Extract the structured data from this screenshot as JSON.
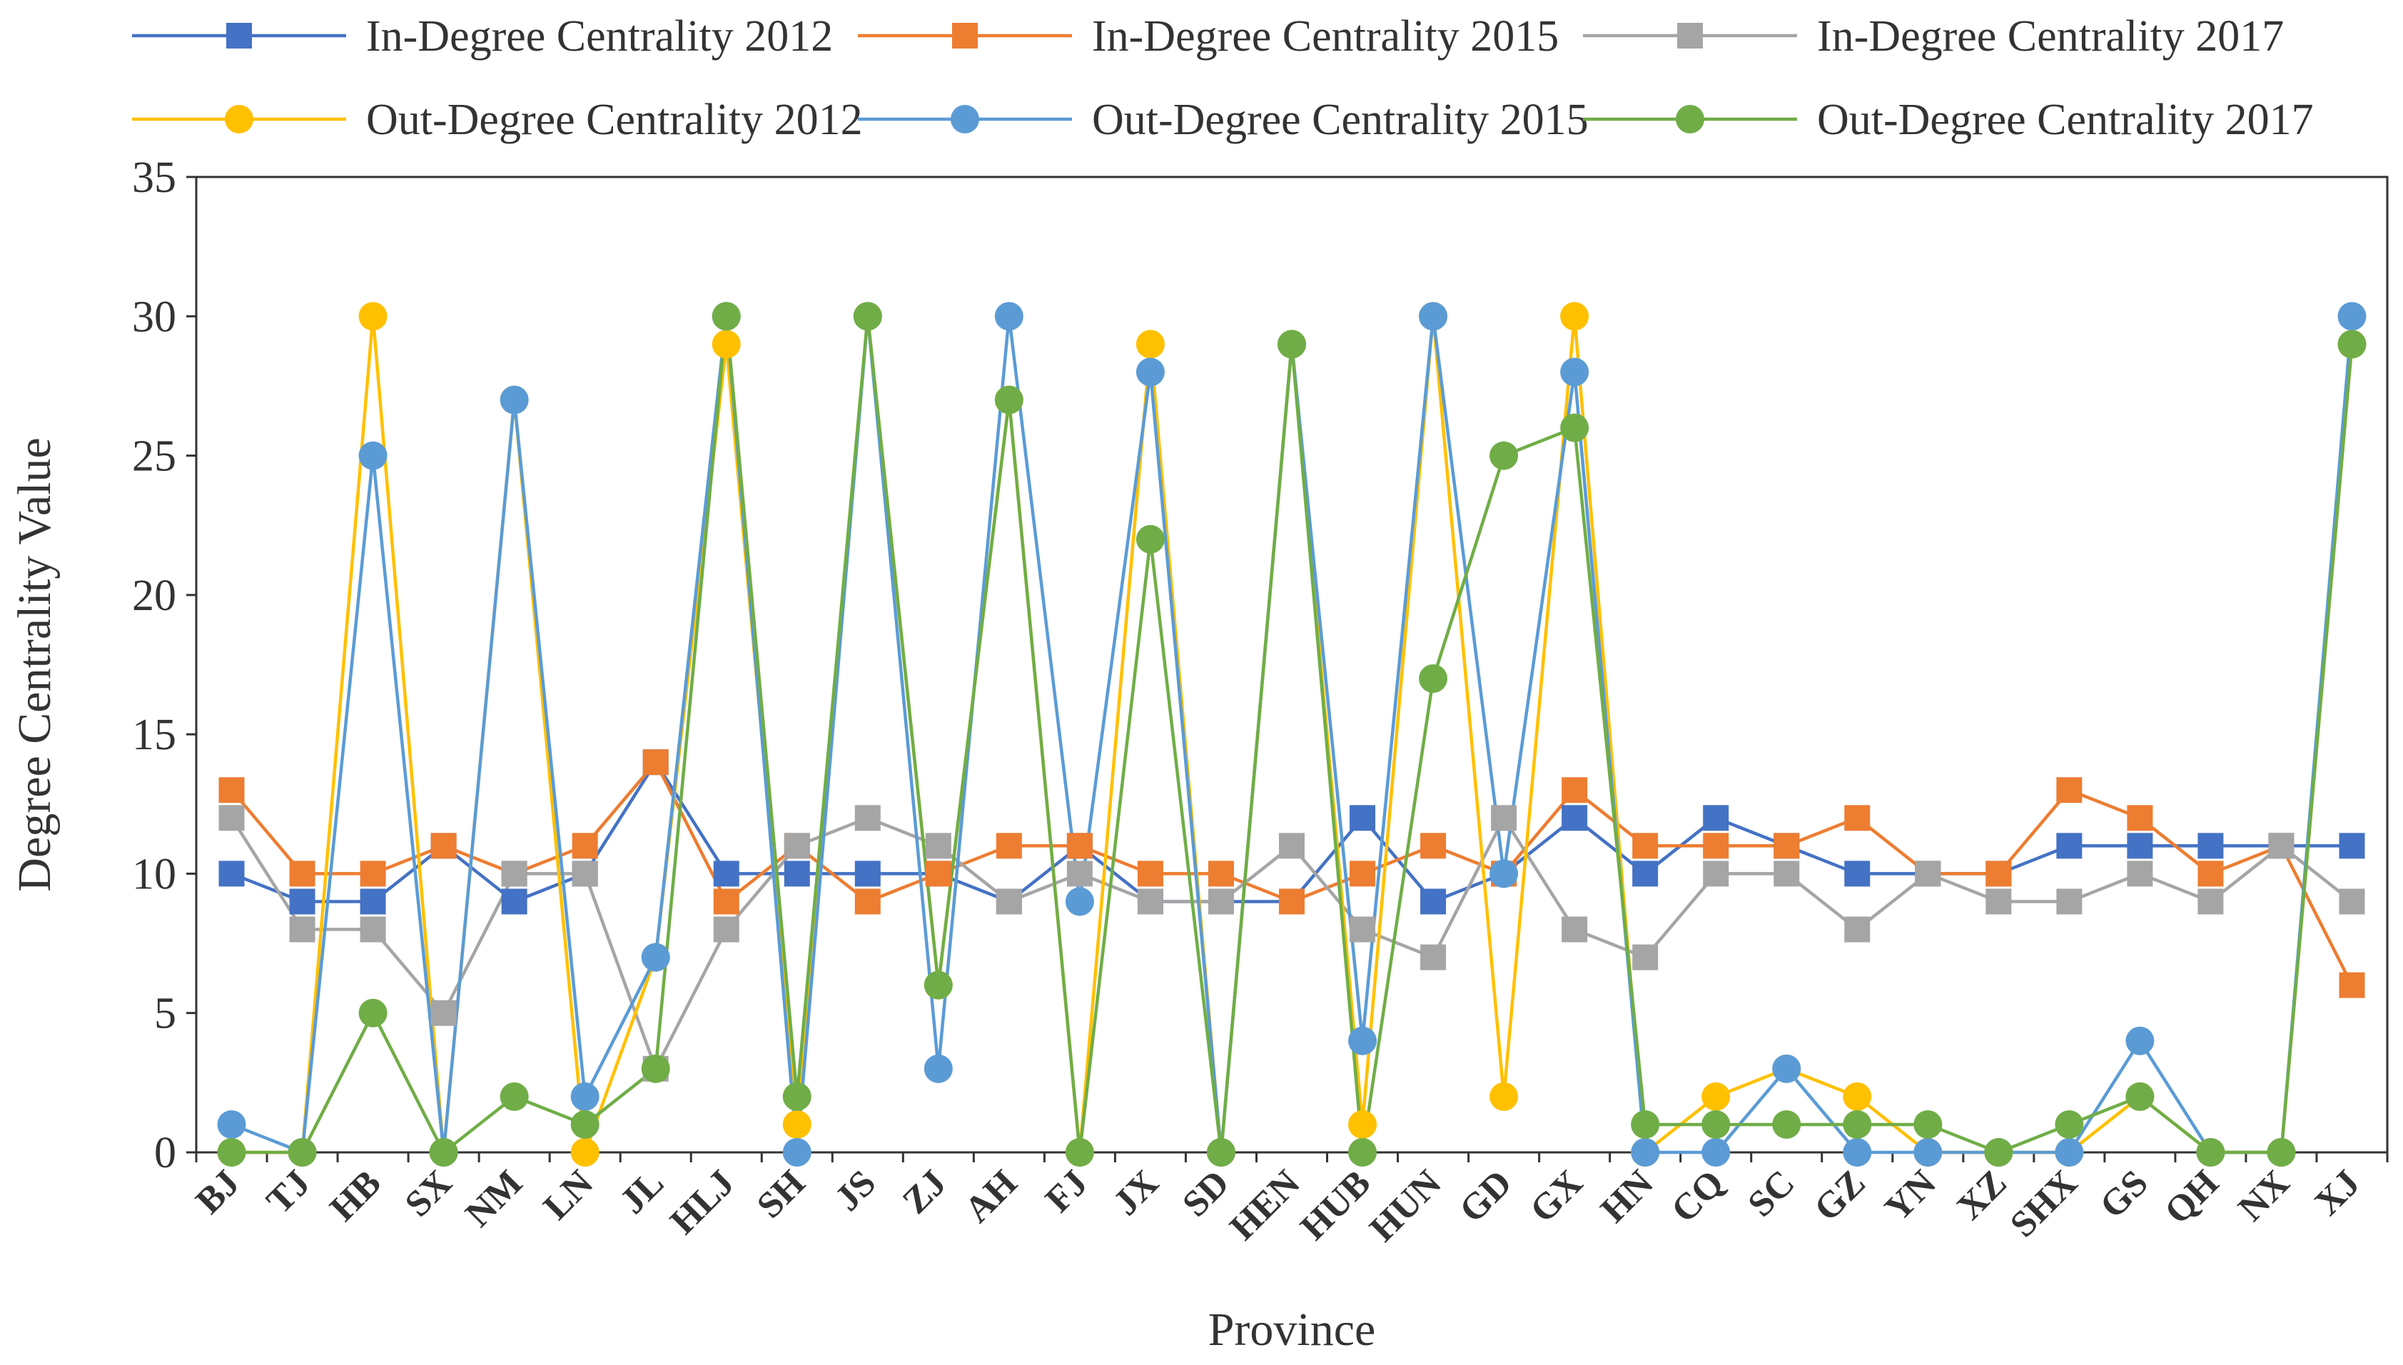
{
  "chart_data": {
    "type": "line",
    "title": "",
    "xlabel": "Province",
    "ylabel": "Degree Centrality Value",
    "ylim": [
      0,
      35
    ],
    "yticks": [
      0,
      5,
      10,
      15,
      20,
      25,
      30,
      35
    ],
    "grid": false,
    "legend_position": "top",
    "categories": [
      "BJ",
      "TJ",
      "HB",
      "SX",
      "NM",
      "LN",
      "JL",
      "HLJ",
      "SH",
      "JS",
      "ZJ",
      "AH",
      "FJ",
      "JX",
      "SD",
      "HEN",
      "HUB",
      "HUN",
      "GD",
      "GX",
      "HN",
      "CQ",
      "SC",
      "GZ",
      "YN",
      "XZ",
      "SHX",
      "GS",
      "QH",
      "NX",
      "XJ"
    ],
    "series": [
      {
        "name": "In-Degree Centrality 2012",
        "marker": "square",
        "color": "#4472C4",
        "values": [
          10,
          9,
          9,
          11,
          9,
          10,
          14,
          10,
          10,
          10,
          10,
          9,
          11,
          9,
          9,
          9,
          12,
          9,
          10,
          12,
          10,
          12,
          11,
          10,
          10,
          10,
          11,
          11,
          11,
          11,
          11
        ]
      },
      {
        "name": "In-Degree Centrality 2015",
        "marker": "square",
        "color": "#ED7D31",
        "values": [
          13,
          10,
          10,
          11,
          10,
          11,
          14,
          9,
          11,
          9,
          10,
          11,
          11,
          10,
          10,
          9,
          10,
          11,
          10,
          13,
          11,
          11,
          11,
          12,
          10,
          10,
          13,
          12,
          10,
          11,
          6
        ]
      },
      {
        "name": "In-Degree Centrality 2017",
        "marker": "square",
        "color": "#A5A5A5",
        "values": [
          12,
          8,
          8,
          5,
          10,
          10,
          3,
          8,
          11,
          12,
          11,
          9,
          10,
          9,
          9,
          11,
          8,
          7,
          12,
          8,
          7,
          10,
          10,
          8,
          10,
          9,
          9,
          10,
          9,
          11,
          9
        ]
      },
      {
        "name": "Out-Degree Centrality 2012",
        "marker": "circle",
        "color": "#FFC000",
        "values": [
          0,
          0,
          30,
          0,
          27,
          0,
          7,
          29,
          1,
          30,
          6,
          27,
          0,
          29,
          0,
          29,
          1,
          30,
          2,
          30,
          0,
          2,
          3,
          2,
          0,
          0,
          0,
          2,
          0,
          0,
          29
        ]
      },
      {
        "name": "Out-Degree Centrality 2015",
        "marker": "circle",
        "color": "#5B9BD5",
        "values": [
          1,
          0,
          25,
          0,
          27,
          2,
          7,
          30,
          0,
          30,
          3,
          30,
          9,
          28,
          0,
          29,
          4,
          30,
          10,
          28,
          0,
          0,
          3,
          0,
          0,
          0,
          0,
          4,
          0,
          0,
          30
        ]
      },
      {
        "name": "Out-Degree Centrality 2017",
        "marker": "circle",
        "color": "#70AD47",
        "values": [
          0,
          0,
          5,
          0,
          2,
          1,
          3,
          30,
          2,
          30,
          6,
          27,
          0,
          22,
          0,
          29,
          0,
          17,
          25,
          26,
          1,
          1,
          1,
          1,
          1,
          0,
          1,
          2,
          0,
          0,
          29
        ]
      }
    ]
  }
}
